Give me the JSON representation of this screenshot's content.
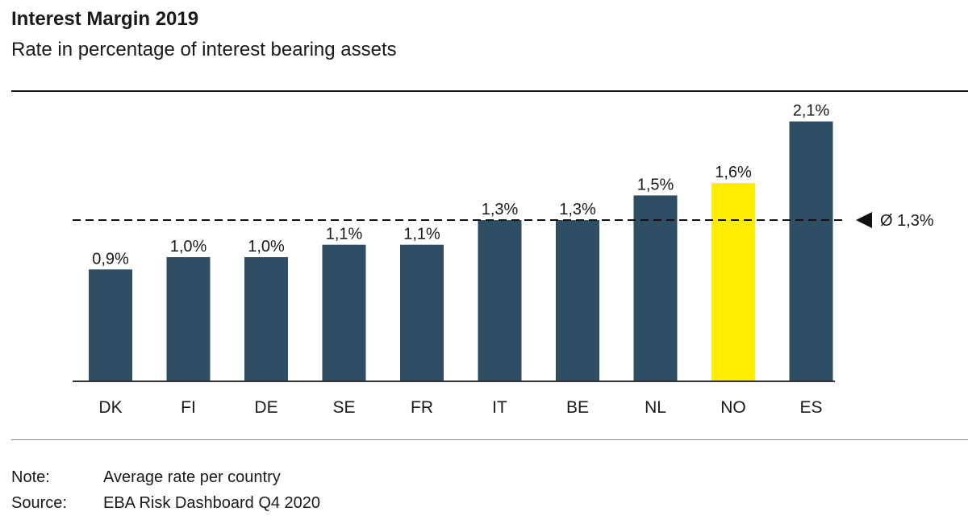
{
  "chart_data": {
    "type": "bar",
    "title": "Interest Margin 2019",
    "subtitle": "Rate in percentage of interest bearing assets",
    "categories": [
      "DK",
      "FI",
      "DE",
      "SE",
      "FR",
      "IT",
      "BE",
      "NL",
      "NO",
      "ES"
    ],
    "values": [
      0.9,
      1.0,
      1.0,
      1.1,
      1.1,
      1.3,
      1.3,
      1.5,
      1.6,
      2.1
    ],
    "value_labels": [
      "0,9%",
      "1,0%",
      "1,0%",
      "1,1%",
      "1,1%",
      "1,3%",
      "1,3%",
      "1,5%",
      "1,6%",
      "2,1%"
    ],
    "highlight_category": "NO",
    "ylim": [
      0,
      2.3
    ],
    "grid": false,
    "reference_line": {
      "value": 1.3,
      "label": "Ø 1,3%",
      "style": "dashed"
    },
    "colors": {
      "bar": "#2d4e63",
      "highlight": "#ffed00",
      "axis": "#333333"
    }
  },
  "notes": [
    {
      "label": "Note:",
      "text": "Average rate per country"
    },
    {
      "label": "Source:",
      "text": "EBA Risk Dashboard Q4 2020"
    }
  ]
}
